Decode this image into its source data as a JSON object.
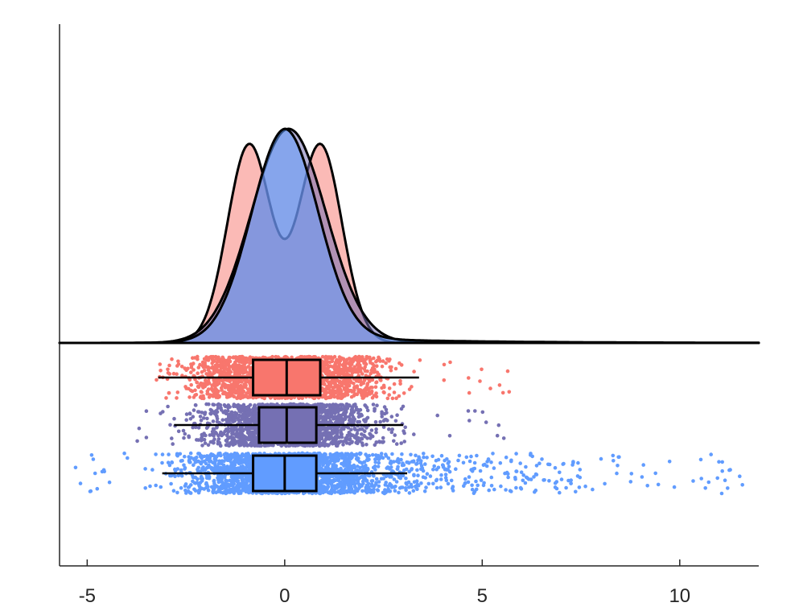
{
  "chart_data": {
    "type": "raincloud",
    "xlim": [
      -5.7,
      12.0
    ],
    "x_ticks": [
      {
        "value": -5,
        "label": "-5"
      },
      {
        "value": 0,
        "label": "0"
      },
      {
        "value": 5,
        "label": "5"
      },
      {
        "value": 10,
        "label": "10"
      }
    ],
    "grid": false,
    "legend": "none",
    "series": [
      {
        "color": "#f8766d",
        "distribution": "bimodal",
        "density_peaks": [
          -0.9,
          0.9
        ],
        "box": {
          "whisker_low": -3.2,
          "q1": -0.8,
          "median": 0.05,
          "q3": 0.9,
          "whisker_high": 3.4
        },
        "points_range": [
          -4.0,
          5.8
        ]
      },
      {
        "color": "#7570b3",
        "distribution": "unimodal",
        "density_peaks": [
          0.1
        ],
        "box": {
          "whisker_low": -2.8,
          "q1": -0.65,
          "median": 0.05,
          "q3": 0.8,
          "whisker_high": 3.0
        },
        "points_range": [
          -4.3,
          5.6
        ]
      },
      {
        "color": "#619cff",
        "distribution": "right-skewed",
        "density_peaks": [
          -0.05
        ],
        "box": {
          "whisker_low": -3.1,
          "q1": -0.8,
          "median": 0.0,
          "q3": 0.8,
          "whisker_high": 3.1
        },
        "points_range": [
          -5.3,
          11.6
        ]
      }
    ]
  }
}
